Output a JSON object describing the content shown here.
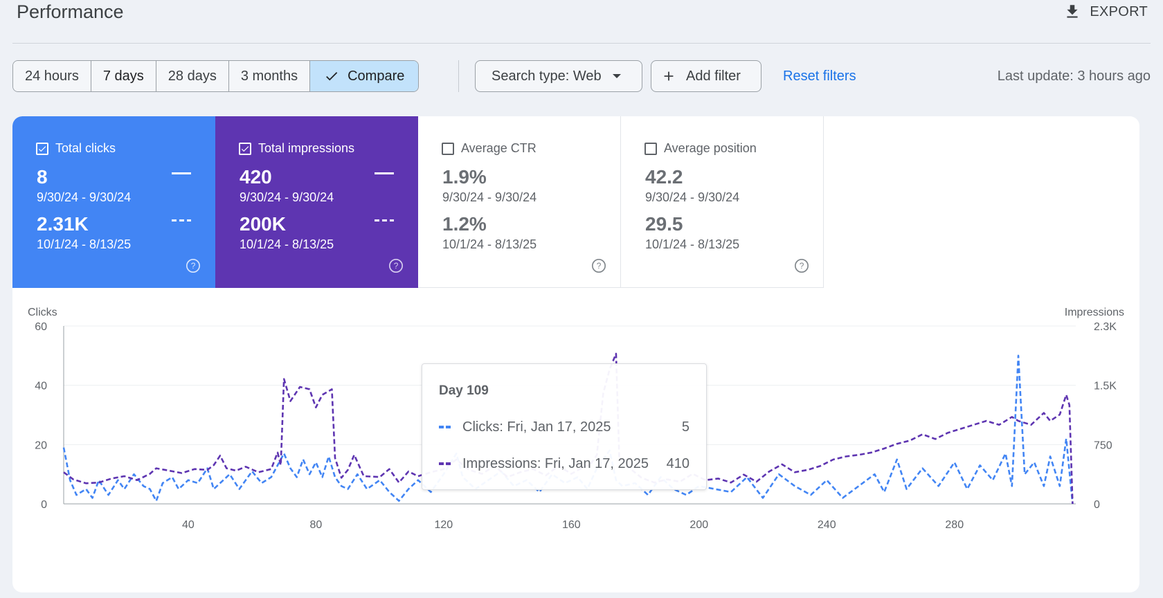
{
  "header": {
    "title": "Performance",
    "export_label": "EXPORT"
  },
  "toolbar": {
    "ranges": [
      "24 hours",
      "7 days",
      "28 days",
      "3 months"
    ],
    "selected_range": "7 days",
    "compare_label": "Compare",
    "search_type": "Search type: Web",
    "add_filter": "Add filter",
    "reset_filters": "Reset filters",
    "last_update": "Last update: 3 hours ago"
  },
  "metrics": [
    {
      "label": "Total clicks",
      "checked": true,
      "value1": "8",
      "date1": "9/30/24 - 9/30/24",
      "value2": "2.31K",
      "date2": "10/1/24 - 8/13/25",
      "color": "#4285f4"
    },
    {
      "label": "Total impressions",
      "checked": true,
      "value1": "420",
      "date1": "9/30/24 - 9/30/24",
      "value2": "200K",
      "date2": "10/1/24 - 8/13/25",
      "color": "#5e35b1"
    },
    {
      "label": "Average CTR",
      "checked": false,
      "value1": "1.9%",
      "date1": "9/30/24 - 9/30/24",
      "value2": "1.2%",
      "date2": "10/1/24 - 8/13/25",
      "color": "#ffffff"
    },
    {
      "label": "Average position",
      "checked": false,
      "value1": "42.2",
      "date1": "9/30/24 - 9/30/24",
      "value2": "29.5",
      "date2": "10/1/24 - 8/13/25",
      "color": "#ffffff"
    }
  ],
  "tooltip": {
    "title": "Day 109",
    "rows": [
      {
        "label": "Clicks: Fri, Jan 17, 2025",
        "value": "5"
      },
      {
        "label": "Impressions: Fri, Jan 17, 2025",
        "value": "410"
      }
    ]
  },
  "chart_data": {
    "type": "line",
    "ylabel_left": "Clicks",
    "ylabel_right": "Impressions",
    "left_ticks": [
      "60",
      "40",
      "20",
      "0"
    ],
    "left_tick_values": [
      60,
      40,
      20,
      0
    ],
    "right_ticks": [
      "2.3K",
      "1.5K",
      "750",
      "0"
    ],
    "right_tick_values": [
      2250,
      1500,
      750,
      0
    ],
    "x_ticks": [
      "40",
      "80",
      "120",
      "160",
      "200",
      "240",
      "280"
    ],
    "x_tick_values": [
      40,
      80,
      120,
      160,
      200,
      240,
      280
    ],
    "xlim": [
      1,
      318
    ],
    "ylim_left": [
      0,
      60
    ],
    "ylim_right": [
      0,
      2250
    ],
    "grid": true,
    "series": [
      {
        "name": "Clicks",
        "axis": "left",
        "color": "#4285f4",
        "style": "dashed",
        "points": [
          [
            1,
            19
          ],
          [
            3,
            8
          ],
          [
            5,
            3
          ],
          [
            8,
            5
          ],
          [
            10,
            2
          ],
          [
            12,
            8
          ],
          [
            15,
            3
          ],
          [
            18,
            8
          ],
          [
            20,
            5
          ],
          [
            23,
            10
          ],
          [
            26,
            6
          ],
          [
            28,
            5
          ],
          [
            30,
            1
          ],
          [
            32,
            7
          ],
          [
            35,
            9
          ],
          [
            37,
            5
          ],
          [
            40,
            8
          ],
          [
            43,
            7
          ],
          [
            46,
            12
          ],
          [
            48,
            5
          ],
          [
            50,
            7
          ],
          [
            53,
            10
          ],
          [
            56,
            5
          ],
          [
            60,
            11
          ],
          [
            63,
            7
          ],
          [
            66,
            9
          ],
          [
            68,
            13
          ],
          [
            70,
            17
          ],
          [
            72,
            12
          ],
          [
            74,
            9
          ],
          [
            76,
            15
          ],
          [
            78,
            10
          ],
          [
            80,
            14
          ],
          [
            82,
            9
          ],
          [
            84,
            16
          ],
          [
            86,
            9
          ],
          [
            88,
            6
          ],
          [
            90,
            5
          ],
          [
            93,
            10
          ],
          [
            96,
            5
          ],
          [
            100,
            8
          ],
          [
            103,
            4
          ],
          [
            106,
            1
          ],
          [
            109,
            5
          ],
          [
            112,
            8
          ],
          [
            116,
            4
          ],
          [
            120,
            10
          ],
          [
            124,
            17
          ],
          [
            126,
            9
          ],
          [
            130,
            5
          ],
          [
            134,
            8
          ],
          [
            138,
            11
          ],
          [
            142,
            6
          ],
          [
            146,
            8
          ],
          [
            150,
            4
          ],
          [
            154,
            10
          ],
          [
            158,
            7
          ],
          [
            162,
            9
          ],
          [
            165,
            5
          ],
          [
            168,
            12
          ],
          [
            170,
            15
          ],
          [
            172,
            18
          ],
          [
            174,
            8
          ],
          [
            176,
            6
          ],
          [
            180,
            7
          ],
          [
            184,
            3
          ],
          [
            188,
            9
          ],
          [
            192,
            5
          ],
          [
            196,
            3
          ],
          [
            200,
            6
          ],
          [
            205,
            5
          ],
          [
            210,
            4
          ],
          [
            215,
            9
          ],
          [
            220,
            2
          ],
          [
            225,
            10
          ],
          [
            230,
            6
          ],
          [
            235,
            3
          ],
          [
            240,
            8
          ],
          [
            245,
            2
          ],
          [
            250,
            6
          ],
          [
            255,
            10
          ],
          [
            258,
            4
          ],
          [
            262,
            15
          ],
          [
            265,
            5
          ],
          [
            270,
            12
          ],
          [
            275,
            6
          ],
          [
            280,
            14
          ],
          [
            284,
            5
          ],
          [
            288,
            13
          ],
          [
            292,
            8
          ],
          [
            296,
            17
          ],
          [
            298,
            6
          ],
          [
            300,
            50
          ],
          [
            302,
            10
          ],
          [
            305,
            14
          ],
          [
            308,
            6
          ],
          [
            310,
            16
          ],
          [
            313,
            6
          ],
          [
            315,
            22
          ],
          [
            317,
            0
          ]
        ]
      },
      {
        "name": "Impressions",
        "axis": "right",
        "color": "#5e35b1",
        "style": "dashed",
        "points": [
          [
            1,
            400
          ],
          [
            4,
            310
          ],
          [
            8,
            260
          ],
          [
            12,
            270
          ],
          [
            16,
            320
          ],
          [
            20,
            350
          ],
          [
            24,
            300
          ],
          [
            28,
            380
          ],
          [
            30,
            450
          ],
          [
            34,
            420
          ],
          [
            38,
            390
          ],
          [
            42,
            440
          ],
          [
            46,
            430
          ],
          [
            48,
            490
          ],
          [
            50,
            610
          ],
          [
            52,
            450
          ],
          [
            55,
            420
          ],
          [
            58,
            470
          ],
          [
            62,
            400
          ],
          [
            66,
            440
          ],
          [
            68,
            650
          ],
          [
            69,
            490
          ],
          [
            70,
            1580
          ],
          [
            72,
            1300
          ],
          [
            75,
            1480
          ],
          [
            78,
            1450
          ],
          [
            80,
            1220
          ],
          [
            82,
            1380
          ],
          [
            85,
            1450
          ],
          [
            86,
            580
          ],
          [
            88,
            330
          ],
          [
            90,
            430
          ],
          [
            92,
            620
          ],
          [
            95,
            350
          ],
          [
            100,
            340
          ],
          [
            103,
            440
          ],
          [
            106,
            270
          ],
          [
            109,
            410
          ],
          [
            112,
            350
          ],
          [
            116,
            400
          ],
          [
            120,
            440
          ],
          [
            124,
            560
          ],
          [
            128,
            430
          ],
          [
            132,
            380
          ],
          [
            136,
            480
          ],
          [
            140,
            340
          ],
          [
            144,
            400
          ],
          [
            148,
            440
          ],
          [
            152,
            360
          ],
          [
            156,
            480
          ],
          [
            160,
            380
          ],
          [
            164,
            470
          ],
          [
            166,
            500
          ],
          [
            168,
            620
          ],
          [
            170,
            1400
          ],
          [
            172,
            1700
          ],
          [
            174,
            1900
          ],
          [
            175,
            600
          ],
          [
            178,
            460
          ],
          [
            182,
            330
          ],
          [
            186,
            270
          ],
          [
            190,
            310
          ],
          [
            194,
            280
          ],
          [
            198,
            380
          ],
          [
            202,
            300
          ],
          [
            206,
            320
          ],
          [
            210,
            270
          ],
          [
            214,
            370
          ],
          [
            218,
            280
          ],
          [
            222,
            410
          ],
          [
            226,
            500
          ],
          [
            230,
            400
          ],
          [
            234,
            430
          ],
          [
            238,
            480
          ],
          [
            242,
            560
          ],
          [
            246,
            600
          ],
          [
            250,
            620
          ],
          [
            254,
            650
          ],
          [
            258,
            700
          ],
          [
            262,
            760
          ],
          [
            266,
            800
          ],
          [
            270,
            880
          ],
          [
            274,
            820
          ],
          [
            278,
            900
          ],
          [
            282,
            950
          ],
          [
            286,
            1000
          ],
          [
            290,
            1050
          ],
          [
            294,
            1000
          ],
          [
            298,
            1100
          ],
          [
            300,
            1050
          ],
          [
            304,
            1000
          ],
          [
            308,
            1150
          ],
          [
            310,
            1050
          ],
          [
            313,
            1130
          ],
          [
            315,
            1380
          ],
          [
            316,
            1250
          ],
          [
            317,
            0
          ]
        ]
      }
    ]
  }
}
